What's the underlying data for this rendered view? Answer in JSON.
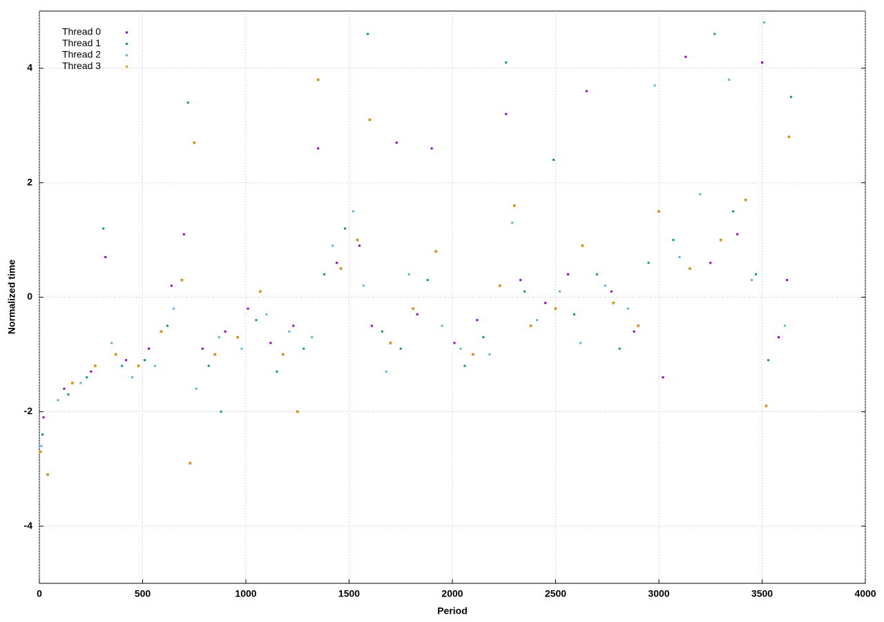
{
  "chart_data": {
    "type": "scatter",
    "x_label": "Period",
    "y_label": "Normalized time",
    "xlim": [
      0,
      4000
    ],
    "xticks": [
      0,
      500,
      1000,
      1500,
      2000,
      2500,
      3000,
      3500,
      4000
    ],
    "ylim": [
      -5,
      5
    ],
    "yticks": [
      -4,
      -2,
      0,
      2,
      4
    ],
    "grid": true,
    "legend": "top-left",
    "series": [
      {
        "name": "Thread 0",
        "color": "#9400d3",
        "x": [
          20,
          120,
          250,
          320,
          420,
          530,
          640,
          700,
          790,
          900,
          1010,
          1120,
          1230,
          1350,
          1440,
          1550,
          1610,
          1730,
          1830,
          1900,
          2010,
          2120,
          2260,
          2330,
          2450,
          2560,
          2650,
          2770,
          2880,
          3020,
          3130,
          3250,
          3380,
          3500,
          3580,
          3620
        ],
        "y": [
          -2.1,
          -1.6,
          -1.3,
          0.7,
          -1.1,
          -0.9,
          0.2,
          1.1,
          -0.9,
          -0.6,
          -0.2,
          -0.8,
          -0.5,
          2.6,
          0.6,
          0.9,
          -0.5,
          2.7,
          -0.3,
          2.6,
          -0.8,
          -0.4,
          3.2,
          0.3,
          -0.1,
          0.4,
          3.6,
          0.1,
          -0.6,
          -1.4,
          4.2,
          0.6,
          1.1,
          4.1,
          -0.7,
          0.3
        ]
      },
      {
        "name": "Thread 1",
        "color": "#009e73",
        "x": [
          15,
          140,
          230,
          310,
          400,
          510,
          620,
          720,
          820,
          880,
          1050,
          1150,
          1280,
          1380,
          1480,
          1590,
          1660,
          1750,
          1880,
          2060,
          2150,
          2260,
          2350,
          2490,
          2590,
          2700,
          2810,
          2950,
          3070,
          3270,
          3360,
          3470,
          3530,
          3640
        ],
        "y": [
          -2.4,
          -1.7,
          -1.4,
          1.2,
          -1.2,
          -1.1,
          -0.5,
          3.4,
          -1.2,
          -2.0,
          -0.4,
          -1.3,
          -0.9,
          0.4,
          1.2,
          4.6,
          -0.6,
          -0.9,
          0.3,
          -1.2,
          -0.7,
          4.1,
          0.1,
          2.4,
          -0.3,
          0.4,
          -0.9,
          0.6,
          1.0,
          4.6,
          1.5,
          0.4,
          -1.1,
          3.5
        ]
      },
      {
        "name": "Thread 2",
        "color": "#56b4e9",
        "x": [
          10,
          90,
          200,
          350,
          450,
          560,
          650,
          760,
          870,
          980,
          1100,
          1210,
          1320,
          1420,
          1520,
          1570,
          1680,
          1790,
          1950,
          2040,
          2180,
          2290,
          2410,
          2520,
          2620,
          2740,
          2850,
          2980,
          3100,
          3200,
          3340,
          3450,
          3510,
          3610
        ],
        "y": [
          -2.6,
          -1.8,
          -1.5,
          -0.8,
          -1.4,
          -1.2,
          -0.2,
          -1.6,
          -0.7,
          -0.9,
          -0.3,
          -0.6,
          -0.7,
          0.9,
          1.5,
          0.2,
          -1.3,
          0.4,
          -0.5,
          -0.9,
          -1.0,
          1.3,
          -0.4,
          0.1,
          -0.8,
          0.2,
          -0.2,
          3.7,
          0.7,
          1.8,
          3.8,
          0.3,
          4.8,
          -0.5
        ]
      },
      {
        "name": "Thread 3",
        "color": "#e69f00",
        "x": [
          5,
          40,
          160,
          270,
          370,
          480,
          590,
          690,
          730,
          750,
          850,
          960,
          1070,
          1180,
          1250,
          1350,
          1460,
          1540,
          1600,
          1700,
          1810,
          1920,
          2100,
          2230,
          2300,
          2380,
          2500,
          2630,
          2780,
          2900,
          3000,
          3150,
          3300,
          3420,
          3520,
          3630
        ],
        "y": [
          -2.7,
          -3.1,
          -1.5,
          -1.2,
          -1.0,
          -1.2,
          -0.6,
          0.3,
          -2.9,
          2.7,
          -1.0,
          -0.7,
          0.1,
          -1.0,
          -2.0,
          3.8,
          0.5,
          1.0,
          3.1,
          -0.8,
          -0.2,
          0.8,
          -1.0,
          0.2,
          1.6,
          -0.5,
          -0.2,
          0.9,
          -0.1,
          -0.5,
          1.5,
          0.5,
          1.0,
          1.7,
          -1.9,
          2.8
        ]
      }
    ]
  }
}
